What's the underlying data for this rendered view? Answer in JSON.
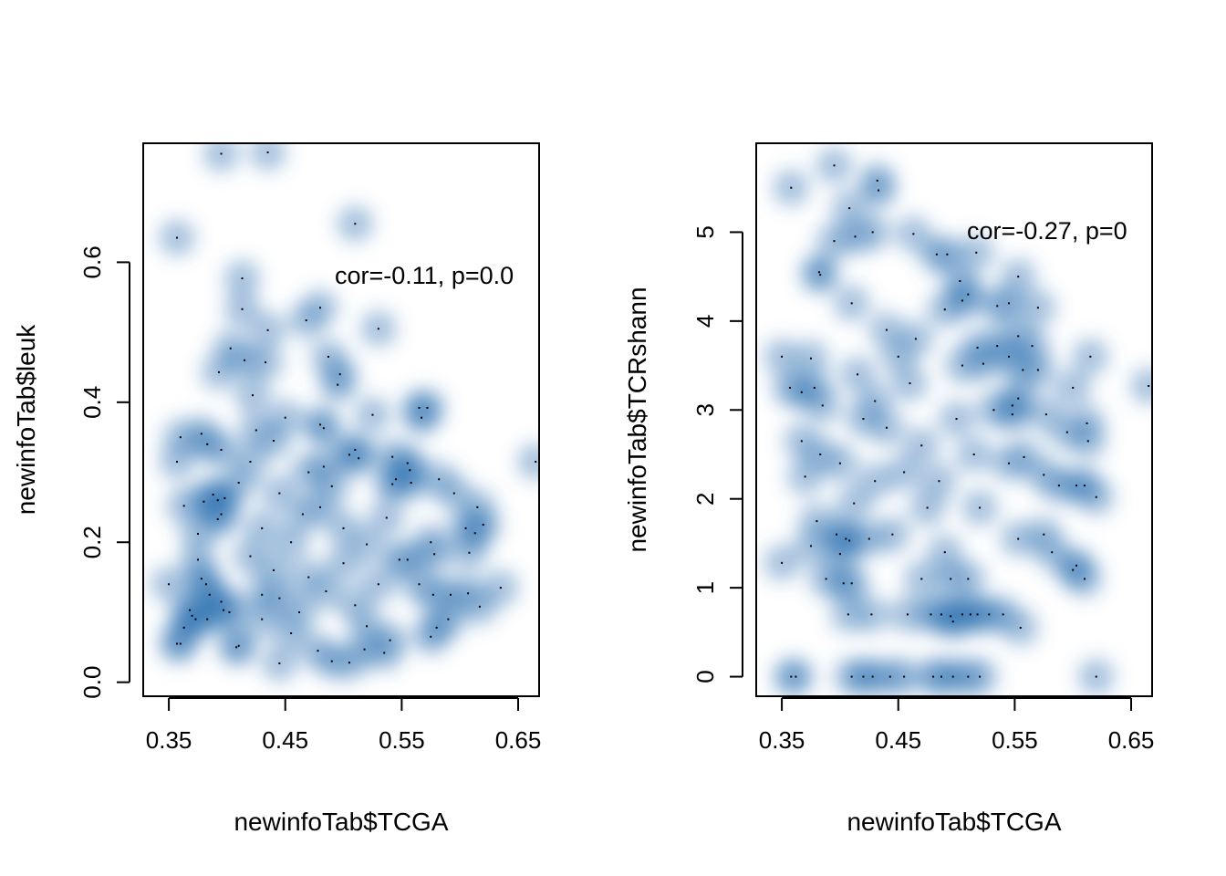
{
  "chart_data": [
    {
      "type": "scatter",
      "style": "smoothScatter (blue density)",
      "title": "",
      "xlabel": "newinfoTab$TCGA",
      "ylabel": "newinfoTab$leuk",
      "xlim": [
        0.328,
        0.668
      ],
      "ylim": [
        -0.02,
        0.77
      ],
      "x_ticks": [
        "0.35",
        "0.45",
        "0.55",
        "0.65"
      ],
      "y_ticks": [
        "0.0",
        "0.2",
        "0.4",
        "0.6"
      ],
      "annotation": "cor=-0.11, p=0.0",
      "grid": false,
      "points": [
        [
          0.395,
          0.755
        ],
        [
          0.435,
          0.757
        ],
        [
          0.51,
          0.655
        ],
        [
          0.357,
          0.635
        ],
        [
          0.413,
          0.577
        ],
        [
          0.468,
          0.517
        ],
        [
          0.48,
          0.535
        ],
        [
          0.53,
          0.505
        ],
        [
          0.435,
          0.503
        ],
        [
          0.413,
          0.533
        ],
        [
          0.403,
          0.477
        ],
        [
          0.415,
          0.46
        ],
        [
          0.433,
          0.457
        ],
        [
          0.393,
          0.443
        ],
        [
          0.487,
          0.465
        ],
        [
          0.497,
          0.44
        ],
        [
          0.495,
          0.425
        ],
        [
          0.422,
          0.41
        ],
        [
          0.565,
          0.392
        ],
        [
          0.572,
          0.392
        ],
        [
          0.567,
          0.378
        ],
        [
          0.525,
          0.382
        ],
        [
          0.45,
          0.378
        ],
        [
          0.48,
          0.368
        ],
        [
          0.483,
          0.363
        ],
        [
          0.378,
          0.355
        ],
        [
          0.36,
          0.35
        ],
        [
          0.383,
          0.34
        ],
        [
          0.44,
          0.345
        ],
        [
          0.425,
          0.36
        ],
        [
          0.395,
          0.332
        ],
        [
          0.505,
          0.325
        ],
        [
          0.513,
          0.32
        ],
        [
          0.51,
          0.332
        ],
        [
          0.542,
          0.322
        ],
        [
          0.555,
          0.313
        ],
        [
          0.357,
          0.315
        ],
        [
          0.42,
          0.315
        ],
        [
          0.483,
          0.308
        ],
        [
          0.545,
          0.29
        ],
        [
          0.557,
          0.303
        ],
        [
          0.558,
          0.285
        ],
        [
          0.542,
          0.283
        ],
        [
          0.582,
          0.29
        ],
        [
          0.595,
          0.27
        ],
        [
          0.665,
          0.315
        ],
        [
          0.41,
          0.285
        ],
        [
          0.388,
          0.268
        ],
        [
          0.398,
          0.263
        ],
        [
          0.392,
          0.26
        ],
        [
          0.38,
          0.258
        ],
        [
          0.363,
          0.252
        ],
        [
          0.615,
          0.25
        ],
        [
          0.62,
          0.225
        ],
        [
          0.605,
          0.22
        ],
        [
          0.613,
          0.213
        ],
        [
          0.608,
          0.185
        ],
        [
          0.537,
          0.235
        ],
        [
          0.395,
          0.24
        ],
        [
          0.375,
          0.212
        ],
        [
          0.392,
          0.233
        ],
        [
          0.575,
          0.2
        ],
        [
          0.52,
          0.197
        ],
        [
          0.555,
          0.175
        ],
        [
          0.548,
          0.175
        ],
        [
          0.578,
          0.183
        ],
        [
          0.35,
          0.14
        ],
        [
          0.375,
          0.175
        ],
        [
          0.378,
          0.148
        ],
        [
          0.382,
          0.14
        ],
        [
          0.385,
          0.125
        ],
        [
          0.395,
          0.115
        ],
        [
          0.43,
          0.125
        ],
        [
          0.565,
          0.14
        ],
        [
          0.577,
          0.125
        ],
        [
          0.592,
          0.125
        ],
        [
          0.607,
          0.127
        ],
        [
          0.617,
          0.108
        ],
        [
          0.635,
          0.135
        ],
        [
          0.59,
          0.09
        ],
        [
          0.58,
          0.078
        ],
        [
          0.575,
          0.065
        ],
        [
          0.36,
          0.055
        ],
        [
          0.357,
          0.055
        ],
        [
          0.363,
          0.078
        ],
        [
          0.368,
          0.103
        ],
        [
          0.373,
          0.09
        ],
        [
          0.37,
          0.095
        ],
        [
          0.383,
          0.09
        ],
        [
          0.397,
          0.103
        ],
        [
          0.402,
          0.1
        ],
        [
          0.41,
          0.052
        ],
        [
          0.408,
          0.05
        ],
        [
          0.445,
          0.027
        ],
        [
          0.478,
          0.045
        ],
        [
          0.49,
          0.03
        ],
        [
          0.505,
          0.028
        ],
        [
          0.518,
          0.047
        ],
        [
          0.535,
          0.042
        ],
        [
          0.462,
          0.1
        ],
        [
          0.445,
          0.12
        ],
        [
          0.47,
          0.15
        ],
        [
          0.5,
          0.17
        ],
        [
          0.455,
          0.2
        ],
        [
          0.43,
          0.22
        ],
        [
          0.465,
          0.24
        ],
        [
          0.445,
          0.27
        ],
        [
          0.48,
          0.25
        ],
        [
          0.5,
          0.22
        ],
        [
          0.42,
          0.18
        ],
        [
          0.44,
          0.16
        ],
        [
          0.485,
          0.13
        ],
        [
          0.51,
          0.11
        ],
        [
          0.53,
          0.14
        ],
        [
          0.455,
          0.07
        ],
        [
          0.52,
          0.08
        ],
        [
          0.54,
          0.06
        ],
        [
          0.43,
          0.09
        ],
        [
          0.47,
          0.3
        ],
        [
          0.49,
          0.28
        ]
      ]
    },
    {
      "type": "scatter",
      "style": "smoothScatter (blue density)",
      "title": "",
      "xlabel": "newinfoTab$TCGA",
      "ylabel": "newinfoTab$TCRshann",
      "xlim": [
        0.328,
        0.668
      ],
      "ylim": [
        -0.22,
        6.0
      ],
      "x_ticks": [
        "0.35",
        "0.45",
        "0.55",
        "0.65"
      ],
      "y_ticks": [
        "0",
        "1",
        "2",
        "3",
        "4",
        "5"
      ],
      "annotation": "cor=-0.27, p=0",
      "grid": false,
      "points": [
        [
          0.395,
          5.75
        ],
        [
          0.432,
          5.58
        ],
        [
          0.433,
          5.47
        ],
        [
          0.358,
          5.5
        ],
        [
          0.408,
          5.27
        ],
        [
          0.428,
          5.0
        ],
        [
          0.413,
          4.95
        ],
        [
          0.463,
          4.98
        ],
        [
          0.483,
          4.75
        ],
        [
          0.492,
          4.75
        ],
        [
          0.517,
          4.77
        ],
        [
          0.503,
          4.45
        ],
        [
          0.553,
          4.5
        ],
        [
          0.382,
          4.55
        ],
        [
          0.383,
          4.52
        ],
        [
          0.51,
          4.3
        ],
        [
          0.505,
          4.23
        ],
        [
          0.49,
          4.13
        ],
        [
          0.535,
          4.17
        ],
        [
          0.545,
          4.2
        ],
        [
          0.57,
          4.15
        ],
        [
          0.41,
          4.2
        ],
        [
          0.553,
          3.83
        ],
        [
          0.565,
          3.72
        ],
        [
          0.535,
          3.72
        ],
        [
          0.545,
          3.6
        ],
        [
          0.57,
          3.45
        ],
        [
          0.557,
          3.45
        ],
        [
          0.518,
          3.7
        ],
        [
          0.523,
          3.52
        ],
        [
          0.35,
          3.6
        ],
        [
          0.375,
          3.58
        ],
        [
          0.385,
          3.05
        ],
        [
          0.357,
          3.25
        ],
        [
          0.367,
          3.2
        ],
        [
          0.378,
          3.25
        ],
        [
          0.553,
          3.13
        ],
        [
          0.548,
          3.05
        ],
        [
          0.532,
          3.0
        ],
        [
          0.548,
          2.95
        ],
        [
          0.577,
          2.95
        ],
        [
          0.6,
          3.25
        ],
        [
          0.612,
          2.85
        ],
        [
          0.613,
          2.65
        ],
        [
          0.595,
          2.75
        ],
        [
          0.558,
          2.47
        ],
        [
          0.545,
          2.4
        ],
        [
          0.575,
          2.27
        ],
        [
          0.588,
          2.15
        ],
        [
          0.603,
          2.15
        ],
        [
          0.61,
          2.15
        ],
        [
          0.62,
          2.02
        ],
        [
          0.367,
          2.65
        ],
        [
          0.37,
          2.25
        ],
        [
          0.383,
          2.5
        ],
        [
          0.4,
          2.4
        ],
        [
          0.412,
          1.95
        ],
        [
          0.38,
          1.75
        ],
        [
          0.375,
          1.47
        ],
        [
          0.397,
          1.6
        ],
        [
          0.405,
          1.55
        ],
        [
          0.408,
          1.53
        ],
        [
          0.425,
          1.55
        ],
        [
          0.4,
          1.38
        ],
        [
          0.553,
          1.55
        ],
        [
          0.575,
          1.6
        ],
        [
          0.582,
          1.4
        ],
        [
          0.6,
          1.2
        ],
        [
          0.603,
          1.25
        ],
        [
          0.61,
          1.1
        ],
        [
          0.615,
          3.6
        ],
        [
          0.665,
          3.27
        ],
        [
          0.35,
          1.28
        ],
        [
          0.388,
          1.1
        ],
        [
          0.403,
          1.05
        ],
        [
          0.41,
          1.05
        ],
        [
          0.495,
          1.1
        ],
        [
          0.51,
          1.1
        ],
        [
          0.407,
          0.7
        ],
        [
          0.427,
          0.7
        ],
        [
          0.458,
          0.7
        ],
        [
          0.478,
          0.7
        ],
        [
          0.487,
          0.7
        ],
        [
          0.495,
          0.68
        ],
        [
          0.497,
          0.62
        ],
        [
          0.505,
          0.7
        ],
        [
          0.512,
          0.7
        ],
        [
          0.518,
          0.7
        ],
        [
          0.528,
          0.7
        ],
        [
          0.54,
          0.7
        ],
        [
          0.555,
          0.55
        ],
        [
          0.358,
          0.0
        ],
        [
          0.362,
          0.0
        ],
        [
          0.41,
          0.0
        ],
        [
          0.42,
          0.0
        ],
        [
          0.428,
          0.0
        ],
        [
          0.443,
          0.0
        ],
        [
          0.455,
          0.0
        ],
        [
          0.48,
          0.0
        ],
        [
          0.487,
          0.0
        ],
        [
          0.497,
          0.0
        ],
        [
          0.51,
          0.0
        ],
        [
          0.52,
          0.0
        ],
        [
          0.62,
          0.0
        ],
        [
          0.43,
          3.1
        ],
        [
          0.44,
          2.8
        ],
        [
          0.46,
          3.3
        ],
        [
          0.45,
          3.6
        ],
        [
          0.47,
          2.6
        ],
        [
          0.42,
          2.9
        ],
        [
          0.455,
          2.3
        ],
        [
          0.485,
          2.2
        ],
        [
          0.49,
          1.4
        ],
        [
          0.475,
          1.9
        ],
        [
          0.44,
          3.9
        ],
        [
          0.465,
          3.8
        ],
        [
          0.395,
          4.9
        ],
        [
          0.5,
          2.9
        ],
        [
          0.515,
          2.5
        ],
        [
          0.43,
          2.2
        ],
        [
          0.415,
          3.4
        ],
        [
          0.445,
          1.6
        ],
        [
          0.47,
          1.1
        ],
        [
          0.52,
          1.9
        ],
        [
          0.505,
          3.5
        ]
      ]
    }
  ]
}
